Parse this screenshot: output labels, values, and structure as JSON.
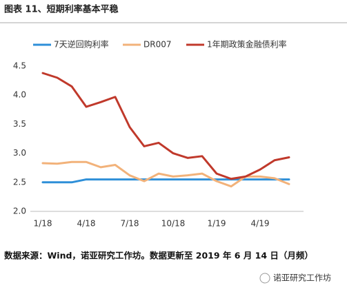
{
  "chart_data": {
    "type": "line",
    "title": "图表 11、短期利率基本平稳",
    "categories": [
      "1/18",
      null,
      null,
      "4/18",
      null,
      null,
      "7/18",
      null,
      null,
      "10/18",
      null,
      null,
      "1/19",
      null,
      null,
      "4/19",
      null,
      null
    ],
    "series": [
      {
        "name": "7天逆回购利率",
        "color": "#2e8fd8",
        "values": [
          2.5,
          2.5,
          2.5,
          2.55,
          2.55,
          2.55,
          2.55,
          2.55,
          2.55,
          2.55,
          2.55,
          2.55,
          2.55,
          2.55,
          2.55,
          2.55,
          2.55,
          2.55
        ]
      },
      {
        "name": "DR007",
        "color": "#f2b27a",
        "values": [
          2.83,
          2.82,
          2.85,
          2.85,
          2.76,
          2.8,
          2.62,
          2.52,
          2.65,
          2.6,
          2.62,
          2.65,
          2.52,
          2.43,
          2.6,
          2.6,
          2.57,
          2.47
        ]
      },
      {
        "name": "1年期政策金融债利率",
        "color": "#c0392b",
        "values": [
          4.38,
          4.3,
          4.15,
          3.8,
          3.88,
          3.97,
          3.45,
          3.12,
          3.18,
          3.0,
          2.92,
          2.95,
          2.65,
          2.56,
          2.6,
          2.72,
          2.88,
          2.93
        ]
      }
    ],
    "ylim": [
      2.0,
      4.5
    ],
    "yticks": [
      {
        "value": 2.0,
        "label": "2.0"
      },
      2.5,
      {
        "value": 3.0,
        "label": "3.0"
      },
      3.5,
      {
        "value": 4.0,
        "label": "4.0"
      },
      4.5
    ],
    "source": "数据来源：Wind，诺亚研究工作坊。数据更新至 2019 年 6 月 14 日（月频）",
    "watermark": "诺亚研究工作坊"
  }
}
